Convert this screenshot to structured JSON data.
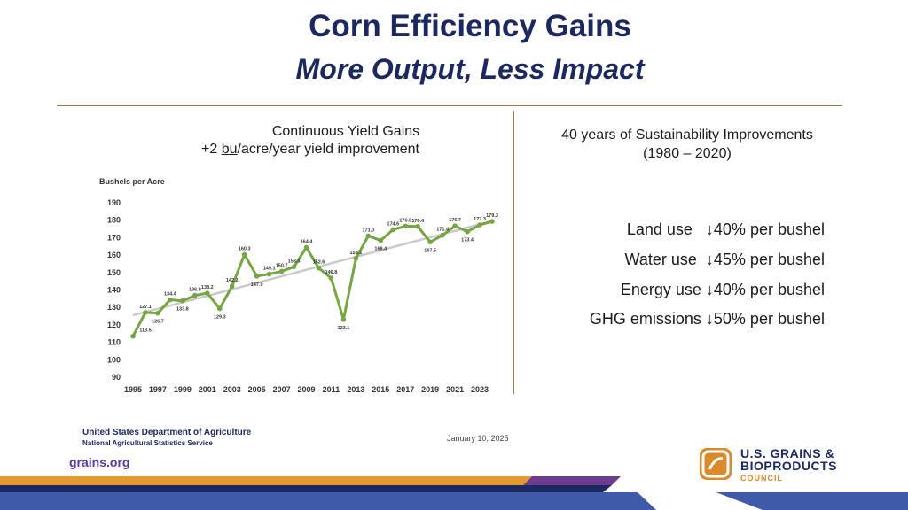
{
  "header": {
    "title": "Corn Efficiency Gains",
    "subtitle": "More Output, Less Impact"
  },
  "left": {
    "title": "Continuous Yield Gains",
    "subtitle_prefix": "+2 ",
    "subtitle_underlined": "bu",
    "subtitle_suffix": "/acre/year yield improvement"
  },
  "chart_data": {
    "type": "line",
    "ylabel": "Bushels per Acre",
    "ylim": [
      90,
      190
    ],
    "yticks": [
      90,
      100,
      110,
      120,
      130,
      140,
      150,
      160,
      170,
      180,
      190
    ],
    "xticks": [
      "1995",
      "1997",
      "1999",
      "2001",
      "2003",
      "2005",
      "2007",
      "2009",
      "2011",
      "2013",
      "2015",
      "2017",
      "2019",
      "2021",
      "2023"
    ],
    "x": [
      1995,
      1996,
      1997,
      1998,
      1999,
      2000,
      2001,
      2002,
      2003,
      2004,
      2005,
      2006,
      2007,
      2008,
      2009,
      2010,
      2011,
      2012,
      2013,
      2014,
      2015,
      2016,
      2017,
      2018,
      2019,
      2020,
      2021,
      2022,
      2023,
      2024
    ],
    "series": [
      {
        "name": "Yield",
        "color": "#76a543",
        "values": [
          113.5,
          127.1,
          126.7,
          134.4,
          133.8,
          136.9,
          138.2,
          129.3,
          142.2,
          160.3,
          147.9,
          149.1,
          150.7,
          153.3,
          164.4,
          152.6,
          146.8,
          123.1,
          158.1,
          171.0,
          168.4,
          174.6,
          176.6,
          176.4,
          167.5,
          171.4,
          176.7,
          173.4,
          177.3,
          179.3
        ],
        "labels": [
          "113.5",
          "127.1",
          "126.7",
          "134.4",
          "133.8",
          "136.9",
          "138.2",
          "129.3",
          "142.2",
          "160.3",
          "147.9",
          "149.1",
          "150.7",
          "153.3",
          "164.4",
          "152.6",
          "146.8",
          "123.1",
          "158.1",
          "171.0",
          "168.4",
          "174.6",
          "176.6",
          "176.4",
          "167.5",
          "171.4",
          "176.7",
          "173.4",
          "177.3",
          "179.3"
        ]
      },
      {
        "name": "Trend",
        "color": "#c9c9c9",
        "values_at_ends": [
          125.5,
          179.5
        ]
      }
    ]
  },
  "right": {
    "title_line1": "40 years of Sustainability Improvements",
    "title_line2": "(1980 – 2020)",
    "metrics": [
      {
        "text": "Land use   ↓40% per bushel"
      },
      {
        "text": "Water use  ↓45% per bushel"
      },
      {
        "text": "Energy use ↓40% per bushel"
      },
      {
        "text": "GHG emissions ↓50% per bushel"
      }
    ]
  },
  "footer": {
    "usda_line1": "United States Department of Agriculture",
    "usda_line2": "National Agricultural Statistics Service",
    "date": "January 10, 2025",
    "site": "grains.org",
    "logo_line1": "U.S. GRAINS &",
    "logo_line2": "BIOPRODUCTS",
    "logo_line3": "COUNCIL"
  },
  "colors": {
    "navy": "#1c2860",
    "accent_orange": "#d98a2b",
    "rule_brown": "#a97342",
    "line_green": "#76a543",
    "stripe_blue": "#3e5aa8",
    "stripe_purple": "#6a3d91"
  }
}
